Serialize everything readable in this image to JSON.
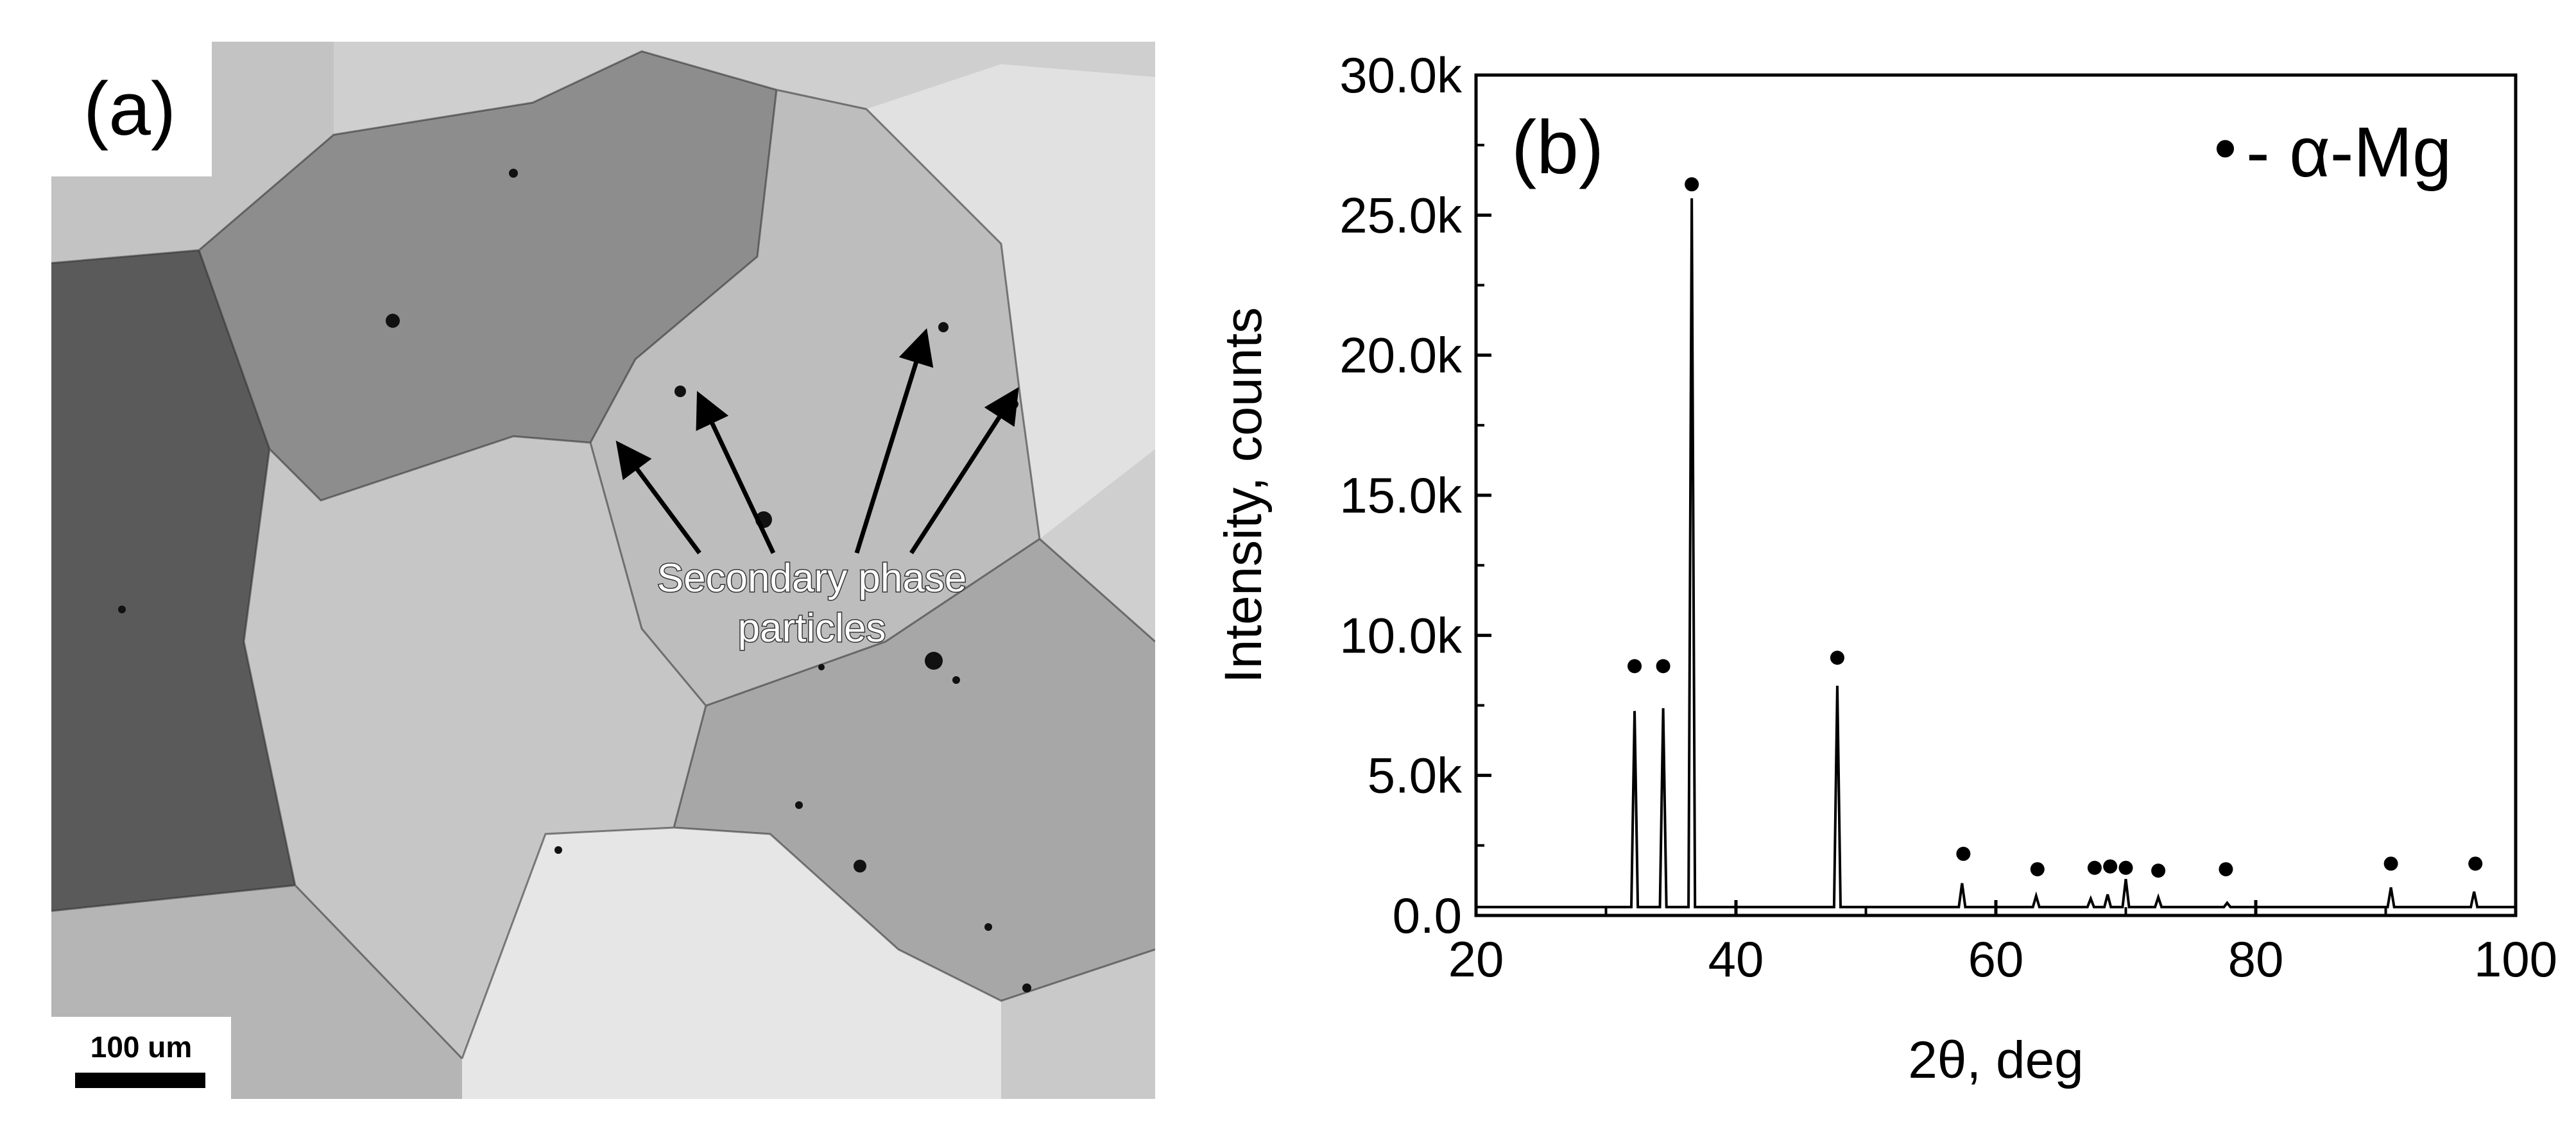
{
  "panel_a": {
    "label": "(a)",
    "annotation": [
      "Secondary phase",
      "particles"
    ],
    "scale_bar_label": "100 um"
  },
  "chart_data": {
    "type": "line",
    "panel_label": "(b)",
    "xlabel": "2θ, deg",
    "ylabel": "Intensity, counts",
    "xlim": [
      20,
      100
    ],
    "ylim": [
      0,
      30000
    ],
    "x_ticks": [
      20,
      40,
      60,
      80,
      100
    ],
    "x_tick_labels": [
      "20",
      "40",
      "60",
      "80",
      "100"
    ],
    "y_ticks": [
      0,
      5000,
      10000,
      15000,
      20000,
      25000,
      30000
    ],
    "y_tick_labels": [
      "0.0",
      "5.0k",
      "10.0k",
      "15.0k",
      "20.0k",
      "25.0k",
      "30.0k"
    ],
    "legend": {
      "symbol": "•",
      "label": "- α-Mg",
      "position": "top-right"
    },
    "grid": false,
    "baseline": 300,
    "peaks": [
      {
        "x": 32.2,
        "y": 7300
      },
      {
        "x": 34.4,
        "y": 7400
      },
      {
        "x": 36.6,
        "y": 25600
      },
      {
        "x": 47.8,
        "y": 8200
      },
      {
        "x": 57.4,
        "y": 1150
      },
      {
        "x": 63.1,
        "y": 700
      },
      {
        "x": 67.3,
        "y": 600
      },
      {
        "x": 68.6,
        "y": 750
      },
      {
        "x": 70.0,
        "y": 1300
      },
      {
        "x": 72.5,
        "y": 650
      },
      {
        "x": 77.8,
        "y": 450
      },
      {
        "x": 90.4,
        "y": 1000
      },
      {
        "x": 96.8,
        "y": 850
      }
    ],
    "markers": [
      {
        "x": 32.2,
        "y": 8900
      },
      {
        "x": 34.4,
        "y": 8900
      },
      {
        "x": 36.6,
        "y": 26100
      },
      {
        "x": 47.8,
        "y": 9200
      },
      {
        "x": 57.5,
        "y": 2200
      },
      {
        "x": 63.2,
        "y": 1650
      },
      {
        "x": 67.6,
        "y": 1700
      },
      {
        "x": 68.8,
        "y": 1750
      },
      {
        "x": 70.0,
        "y": 1700
      },
      {
        "x": 72.5,
        "y": 1600
      },
      {
        "x": 77.7,
        "y": 1650
      },
      {
        "x": 90.4,
        "y": 1850
      },
      {
        "x": 96.9,
        "y": 1850
      }
    ],
    "colors": {
      "line": "#000000",
      "axis": "#000000",
      "marker": "#000000"
    }
  }
}
